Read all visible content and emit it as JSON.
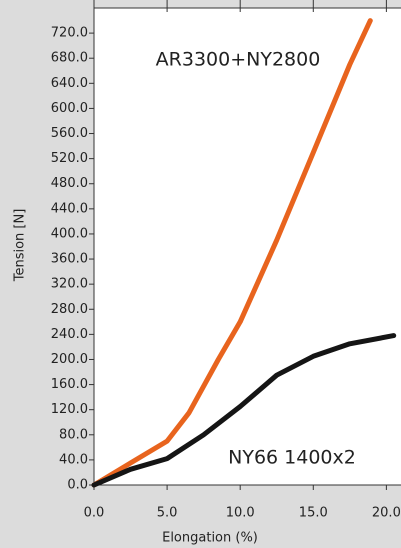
{
  "chart_data": {
    "type": "line",
    "x_label": "Elongation (%)",
    "y_label": "Tension [N]",
    "xlim": [
      0,
      21
    ],
    "ylim": [
      0,
      760
    ],
    "xticks": [
      {
        "value": 0,
        "label": "0.0"
      },
      {
        "value": 5,
        "label": "5.0"
      },
      {
        "value": 10,
        "label": "10.0"
      },
      {
        "value": 15,
        "label": "15.0"
      },
      {
        "value": 20,
        "label": "20.0"
      }
    ],
    "yticks": [
      {
        "value": 0,
        "label": "0.0"
      },
      {
        "value": 40,
        "label": "40.0"
      },
      {
        "value": 80,
        "label": "80.0"
      },
      {
        "value": 120,
        "label": "120.0"
      },
      {
        "value": 160,
        "label": "160.0"
      },
      {
        "value": 200,
        "label": "200.0"
      },
      {
        "value": 240,
        "label": "240.0"
      },
      {
        "value": 280,
        "label": "280.0"
      },
      {
        "value": 320,
        "label": "320.0"
      },
      {
        "value": 360,
        "label": "360.0"
      },
      {
        "value": 400,
        "label": "400.0"
      },
      {
        "value": 440,
        "label": "440.0"
      },
      {
        "value": 480,
        "label": "480.0"
      },
      {
        "value": 520,
        "label": "520.0"
      },
      {
        "value": 560,
        "label": "560.0"
      },
      {
        "value": 600,
        "label": "600.0"
      },
      {
        "value": 640,
        "label": "640.0"
      },
      {
        "value": 680,
        "label": "680.0"
      },
      {
        "value": 720,
        "label": "720.0"
      }
    ],
    "grid": false,
    "series": [
      {
        "name": "AR3300+NY2800",
        "color": "#e8641e",
        "x": [
          0,
          2.5,
          5,
          6.5,
          8.5,
          10,
          12.5,
          15,
          17.5,
          18.9
        ],
        "values": [
          0,
          35,
          70,
          115,
          200,
          260,
          390,
          530,
          670,
          740
        ]
      },
      {
        "name": "NY66 1400x2",
        "color": "#151515",
        "x": [
          0,
          2.5,
          5,
          7.5,
          10,
          12.5,
          15,
          17.5,
          20.5
        ],
        "values": [
          0,
          25,
          42,
          80,
          125,
          175,
          205,
          225,
          238
        ]
      }
    ]
  }
}
